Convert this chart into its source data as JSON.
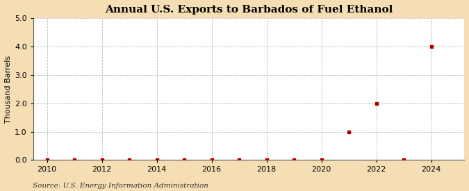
{
  "title": "Annual U.S. Exports to Barbados of Fuel Ethanol",
  "ylabel": "Thousand Barrels",
  "source": "Source: U.S. Energy Information Administration",
  "outer_background": "#f5deb3",
  "plot_background": "#ffffff",
  "years": [
    2010,
    2011,
    2012,
    2013,
    2014,
    2015,
    2016,
    2017,
    2018,
    2019,
    2020,
    2021,
    2022,
    2023,
    2024
  ],
  "values": [
    0.0,
    0.0,
    0.0,
    0.0,
    0.0,
    0.0,
    0.0,
    0.0,
    0.0,
    0.0,
    0.0,
    1.0,
    2.0,
    0.0,
    4.0
  ],
  "marker_color": "#aa0000",
  "ylim": [
    0.0,
    5.0
  ],
  "xlim": [
    2009.5,
    2025.2
  ],
  "yticks": [
    0.0,
    1.0,
    2.0,
    3.0,
    4.0,
    5.0
  ],
  "xticks": [
    2010,
    2012,
    2014,
    2016,
    2018,
    2020,
    2022,
    2024
  ],
  "grid_color": "#bbbbbb",
  "grid_style": "--",
  "title_fontsize": 11,
  "label_fontsize": 8,
  "tick_fontsize": 8,
  "source_fontsize": 7.5
}
